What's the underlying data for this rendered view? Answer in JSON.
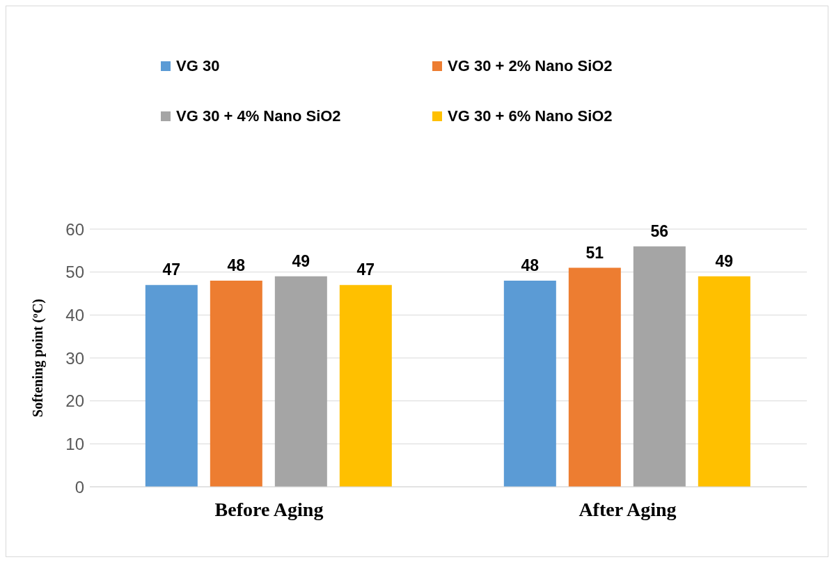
{
  "chart_data": {
    "type": "bar",
    "ylabel": "Softening point (ºC)",
    "categories": [
      "Before Aging",
      "After Aging"
    ],
    "series": [
      {
        "name": "VG 30",
        "color": "#5b9bd5",
        "values": [
          47,
          48
        ]
      },
      {
        "name": "VG 30 + 2% Nano SiO2",
        "color": "#ed7d31",
        "values": [
          48,
          51
        ]
      },
      {
        "name": "VG 30 + 4% Nano SiO2",
        "color": "#a5a5a5",
        "values": [
          49,
          56
        ]
      },
      {
        "name": "VG 30 + 6% Nano SiO2",
        "color": "#ffc000",
        "values": [
          47,
          49
        ]
      }
    ],
    "ylim": [
      0,
      60
    ],
    "yticks": [
      0,
      10,
      20,
      30,
      40,
      50,
      60
    ],
    "grid": "y",
    "legend": "top",
    "data_labels": true
  }
}
